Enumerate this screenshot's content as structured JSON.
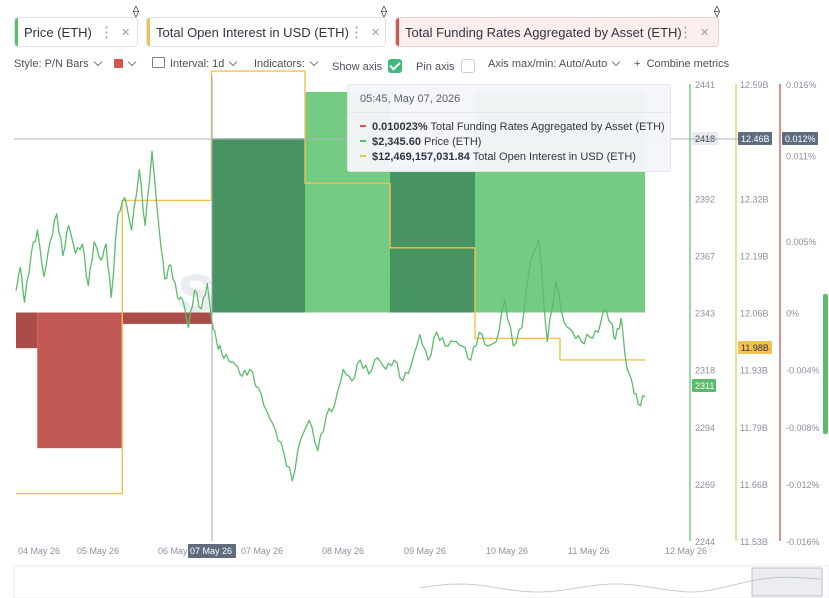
{
  "tabs": [
    {
      "label": "Price (ETH)",
      "color": "#5bbd6a",
      "asset_icon": "⟠"
    },
    {
      "label": "Total Open Interest in USD (ETH)",
      "color": "#f2c14e",
      "asset_icon": "⟠"
    },
    {
      "label": "Total Funding Rates Aggregated by Asset (ETH)",
      "color": "#d9534f",
      "asset_icon": "⟠"
    }
  ],
  "toolbar": {
    "style": "Style: P/N Bars",
    "interval": "Interval: 1d",
    "indicators": "Indicators:",
    "show_axis": "Show axis",
    "pin_axis": "Pin axis",
    "axis_maxmin": "Axis max/min: Auto/Auto",
    "combine": "Combine metrics",
    "plus": "+"
  },
  "tooltip": {
    "date": "05:45, May 07, 2026",
    "rows": [
      {
        "value": "0.010023%",
        "label": "Total Funding Rates Aggregated by Asset (ETH)",
        "color": "#d9534f"
      },
      {
        "value": "$2,345.60",
        "label": "Price (ETH)",
        "color": "#5bbd6a"
      },
      {
        "value": "$12,469,157,031.84",
        "label": "Total Open Interest in USD (ETH)",
        "color": "#f2c14e"
      }
    ]
  },
  "watermark": "santiment",
  "colors": {
    "price": "#5bbd6a",
    "oi": "#f2c14e",
    "funding_neg": "#b94a46",
    "funding_pos_dark": "#3d8e5a",
    "funding_pos_light": "#6bc97a",
    "price_axis_line": "#5bbd6a",
    "oi_axis_line": "#f2c14e",
    "fr_axis_line": "#c9463f"
  },
  "chart_data": {
    "type": "line",
    "x_tick_labels": [
      "04 May 26",
      "05 May 26",
      "06 May 26",
      "07 May 26",
      "07 May 26",
      "08 May 26",
      "09 May 26",
      "10 May 26",
      "11 May 26",
      "12 May 26"
    ],
    "price_axis": {
      "ticks": [
        "2441",
        "2418",
        "2392",
        "2367",
        "2343",
        "2318",
        "2294",
        "2269",
        "2244"
      ],
      "ylim": [
        2244,
        2441
      ],
      "current_label": "2311",
      "crosshair_label": "2418"
    },
    "oi_axis": {
      "ticks": [
        "12.59B",
        "12.46B",
        "12.32B",
        "12.19B",
        "12.06B",
        "11.93B",
        "11.79B",
        "11.66B",
        "11.53B"
      ],
      "ylim": [
        11.53,
        12.59
      ],
      "unit": "B",
      "current_label": "11.98B",
      "crosshair_label": "12.46B"
    },
    "funding_axis": {
      "ticks": [
        "0.016%",
        "0.011%",
        "0.005%",
        "0%",
        "-0.004%",
        "-0.008%",
        "-0.012%",
        "-0.016%"
      ],
      "tick_values": [
        0.016,
        0.011,
        0.005,
        0,
        -0.004,
        -0.008,
        -0.012,
        -0.016
      ],
      "ylim": [
        -0.016,
        0.016
      ],
      "crosshair_label": "0.012%"
    },
    "funding_bars": [
      {
        "x0": 0.0,
        "x1": 0.25,
        "value": -0.0025
      },
      {
        "x0": 0.25,
        "x1": 1.25,
        "value": -0.0095
      },
      {
        "x0": 1.25,
        "x1": 2.3,
        "value": -0.0008
      },
      {
        "x0": 2.3,
        "x1": 3.4,
        "value": 0.0122
      },
      {
        "x0": 3.4,
        "x1": 4.4,
        "value": 0.0186
      },
      {
        "x0": 4.4,
        "x1": 5.4,
        "value": 0.0102
      },
      {
        "x0": 5.4,
        "x1": 7.4,
        "value": 0.016
      }
    ],
    "open_interest": {
      "x": [
        0.0,
        1.25,
        1.25,
        2.3,
        2.3,
        3.4,
        3.4,
        4.4,
        4.4,
        5.4,
        5.4,
        6.4,
        6.4,
        7.4
      ],
      "values": [
        11.64,
        11.64,
        12.32,
        12.32,
        12.62,
        12.62,
        12.36,
        12.36,
        12.21,
        12.21,
        12.0,
        12.0,
        11.95,
        11.95
      ]
    },
    "price": {
      "x": [
        0.0,
        0.05,
        0.1,
        0.18,
        0.25,
        0.33,
        0.4,
        0.48,
        0.55,
        0.62,
        0.7,
        0.78,
        0.85,
        0.92,
        1.0,
        1.06,
        1.12,
        1.2,
        1.28,
        1.36,
        1.45,
        1.52,
        1.6,
        1.68,
        1.75,
        1.82,
        1.9,
        1.96,
        2.03,
        2.1,
        2.18,
        2.25,
        2.3,
        2.36,
        2.42,
        2.5,
        2.58,
        2.66,
        2.75,
        2.85,
        2.95,
        3.05,
        3.15,
        3.25,
        3.35,
        3.45,
        3.55,
        3.65,
        3.75,
        3.85,
        3.95,
        4.05,
        4.15,
        4.25,
        4.35,
        4.45,
        4.55,
        4.65,
        4.75,
        4.85,
        4.95,
        5.05,
        5.15,
        5.25,
        5.35,
        5.45,
        5.55,
        5.65,
        5.75,
        5.85,
        5.95,
        6.05,
        6.15,
        6.25,
        6.35,
        6.45,
        6.55,
        6.65,
        6.75,
        6.85,
        6.92,
        7.0,
        7.05,
        7.12,
        7.18,
        7.25,
        7.32,
        7.4
      ],
      "values": [
        2352,
        2362,
        2347,
        2368,
        2378,
        2358,
        2373,
        2385,
        2367,
        2380,
        2368,
        2372,
        2354,
        2373,
        2365,
        2372,
        2349,
        2385,
        2392,
        2378,
        2404,
        2380,
        2412,
        2380,
        2357,
        2363,
        2349,
        2348,
        2336,
        2352,
        2344,
        2355,
        2340,
        2330,
        2325,
        2322,
        2320,
        2315,
        2318,
        2310,
        2300,
        2292,
        2282,
        2270,
        2288,
        2296,
        2283,
        2298,
        2303,
        2318,
        2313,
        2322,
        2316,
        2323,
        2318,
        2322,
        2313,
        2320,
        2333,
        2322,
        2334,
        2328,
        2330,
        2328,
        2322,
        2334,
        2328,
        2330,
        2348,
        2328,
        2336,
        2364,
        2374,
        2330,
        2356,
        2338,
        2334,
        2330,
        2332,
        2334,
        2344,
        2338,
        2331,
        2340,
        2320,
        2312,
        2303,
        2306
      ]
    }
  }
}
